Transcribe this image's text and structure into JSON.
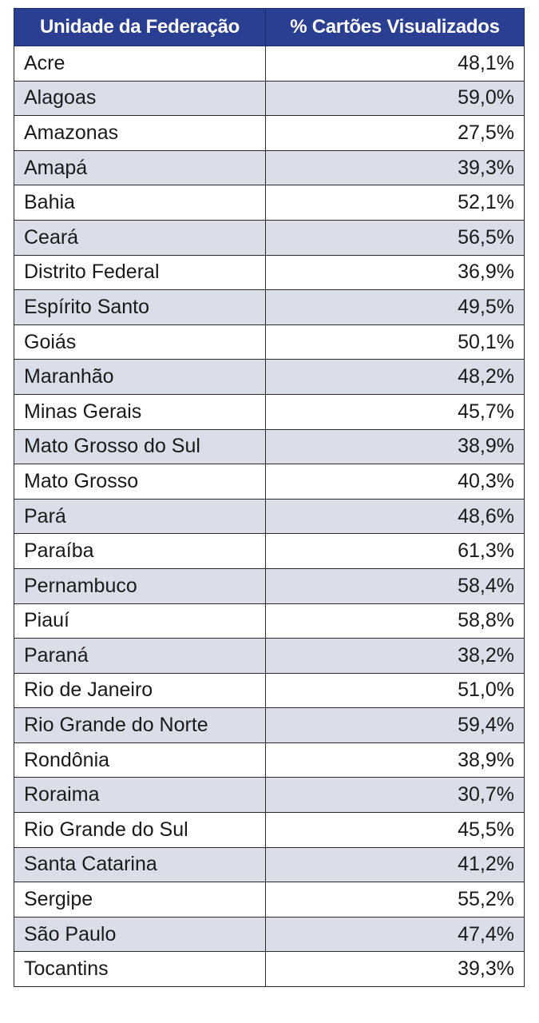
{
  "header": {
    "col_state": "Unidade da Federação",
    "col_value": "% Cartões Visualizados"
  },
  "rows": [
    {
      "uf": "Acre",
      "value": "48,1%"
    },
    {
      "uf": "Alagoas",
      "value": "59,0%"
    },
    {
      "uf": "Amazonas",
      "value": "27,5%"
    },
    {
      "uf": "Amapá",
      "value": "39,3%"
    },
    {
      "uf": "Bahia",
      "value": "52,1%"
    },
    {
      "uf": "Ceará",
      "value": "56,5%"
    },
    {
      "uf": "Distrito Federal",
      "value": "36,9%"
    },
    {
      "uf": "Espírito Santo",
      "value": "49,5%"
    },
    {
      "uf": "Goiás",
      "value": "50,1%"
    },
    {
      "uf": "Maranhão",
      "value": "48,2%"
    },
    {
      "uf": "Minas Gerais",
      "value": "45,7%"
    },
    {
      "uf": "Mato Grosso do Sul",
      "value": "38,9%"
    },
    {
      "uf": "Mato Grosso",
      "value": "40,3%"
    },
    {
      "uf": "Pará",
      "value": "48,6%"
    },
    {
      "uf": "Paraíba",
      "value": "61,3%"
    },
    {
      "uf": "Pernambuco",
      "value": "58,4%"
    },
    {
      "uf": "Piauí",
      "value": "58,8%"
    },
    {
      "uf": "Paraná",
      "value": "38,2%"
    },
    {
      "uf": "Rio de Janeiro",
      "value": "51,0%"
    },
    {
      "uf": "Rio Grande do Norte",
      "value": "59,4%"
    },
    {
      "uf": "Rondônia",
      "value": "38,9%"
    },
    {
      "uf": "Roraima",
      "value": "30,7%"
    },
    {
      "uf": "Rio Grande do Sul",
      "value": "45,5%"
    },
    {
      "uf": "Santa Catarina",
      "value": "41,2%"
    },
    {
      "uf": "Sergipe",
      "value": "55,2%"
    },
    {
      "uf": "São Paulo",
      "value": "47,4%"
    },
    {
      "uf": "Tocantins",
      "value": "39,3%"
    }
  ],
  "colors": {
    "header_bg": "#2b3f92",
    "header_text": "#ffffff",
    "stripe_bg": "#d9dee8",
    "row_bg": "#ffffff"
  }
}
